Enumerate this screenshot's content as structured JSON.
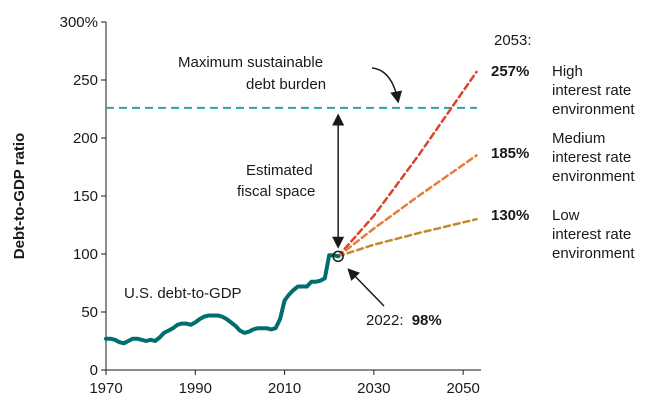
{
  "chart_data": {
    "type": "line",
    "xlabel": "",
    "ylabel": "Debt-to-GDP ratio",
    "xlim": [
      1970,
      2054
    ],
    "ylim": [
      0,
      300
    ],
    "x_ticks": [
      "1970",
      "1990",
      "2010",
      "2030",
      "2050"
    ],
    "y_ticks": [
      "0",
      "50",
      "100",
      "150",
      "200",
      "250",
      "300%"
    ],
    "historical": {
      "name": "U.S. debt-to-GDP",
      "color": "#006e6e",
      "x": [
        1970,
        1971,
        1972,
        1973,
        1974,
        1975,
        1976,
        1977,
        1978,
        1979,
        1980,
        1981,
        1982,
        1983,
        1984,
        1985,
        1986,
        1987,
        1988,
        1989,
        1990,
        1991,
        1992,
        1993,
        1994,
        1995,
        1996,
        1997,
        1998,
        1999,
        2000,
        2001,
        2002,
        2003,
        2004,
        2005,
        2006,
        2007,
        2008,
        2009,
        2010,
        2011,
        2012,
        2013,
        2014,
        2015,
        2016,
        2017,
        2018,
        2019,
        2020,
        2021,
        2022
      ],
      "y": [
        27,
        27,
        26,
        24,
        23,
        25,
        27,
        27,
        26,
        25,
        26,
        25,
        28,
        32,
        34,
        36,
        39,
        40,
        40,
        39,
        41,
        44,
        46,
        47,
        47,
        47,
        46,
        44,
        41,
        38,
        34,
        32,
        33,
        35,
        36,
        36,
        36,
        35,
        36,
        44,
        60,
        65,
        69,
        72,
        72,
        72,
        76,
        76,
        77,
        79,
        99,
        99,
        98
      ]
    },
    "projections": [
      {
        "label": "High",
        "sublabel": "interest rate environment",
        "line1": "interest rate",
        "line2": "environment",
        "value_label": "257%",
        "color": "#e0432b",
        "x": [
          2022,
          2030,
          2040,
          2053
        ],
        "y": [
          98,
          133,
          185,
          257
        ]
      },
      {
        "label": "Medium",
        "sublabel": "interest rate environment",
        "line1": "interest rate",
        "line2": "environment",
        "value_label": "185%",
        "color": "#ea7a36",
        "x": [
          2022,
          2030,
          2040,
          2053
        ],
        "y": [
          98,
          122,
          150,
          185
        ]
      },
      {
        "label": "Low",
        "sublabel": "interest rate environment",
        "line1": "interest rate",
        "line2": "environment",
        "value_label": "130%",
        "color": "#c08b2a",
        "x": [
          2022,
          2030,
          2040,
          2053
        ],
        "y": [
          98,
          108,
          118,
          130
        ]
      }
    ],
    "threshold": {
      "value": 226,
      "color": "#2aa4a4",
      "label_line1": "Maximum sustainable",
      "label_line2": "debt burden"
    },
    "annotations": {
      "year_label": "2053:",
      "fiscal_space_line1": "Estimated",
      "fiscal_space_line2": "fiscal space",
      "current_label": "2022:",
      "current_value": "98%",
      "current_point": {
        "x": 2022,
        "y": 98
      }
    }
  }
}
